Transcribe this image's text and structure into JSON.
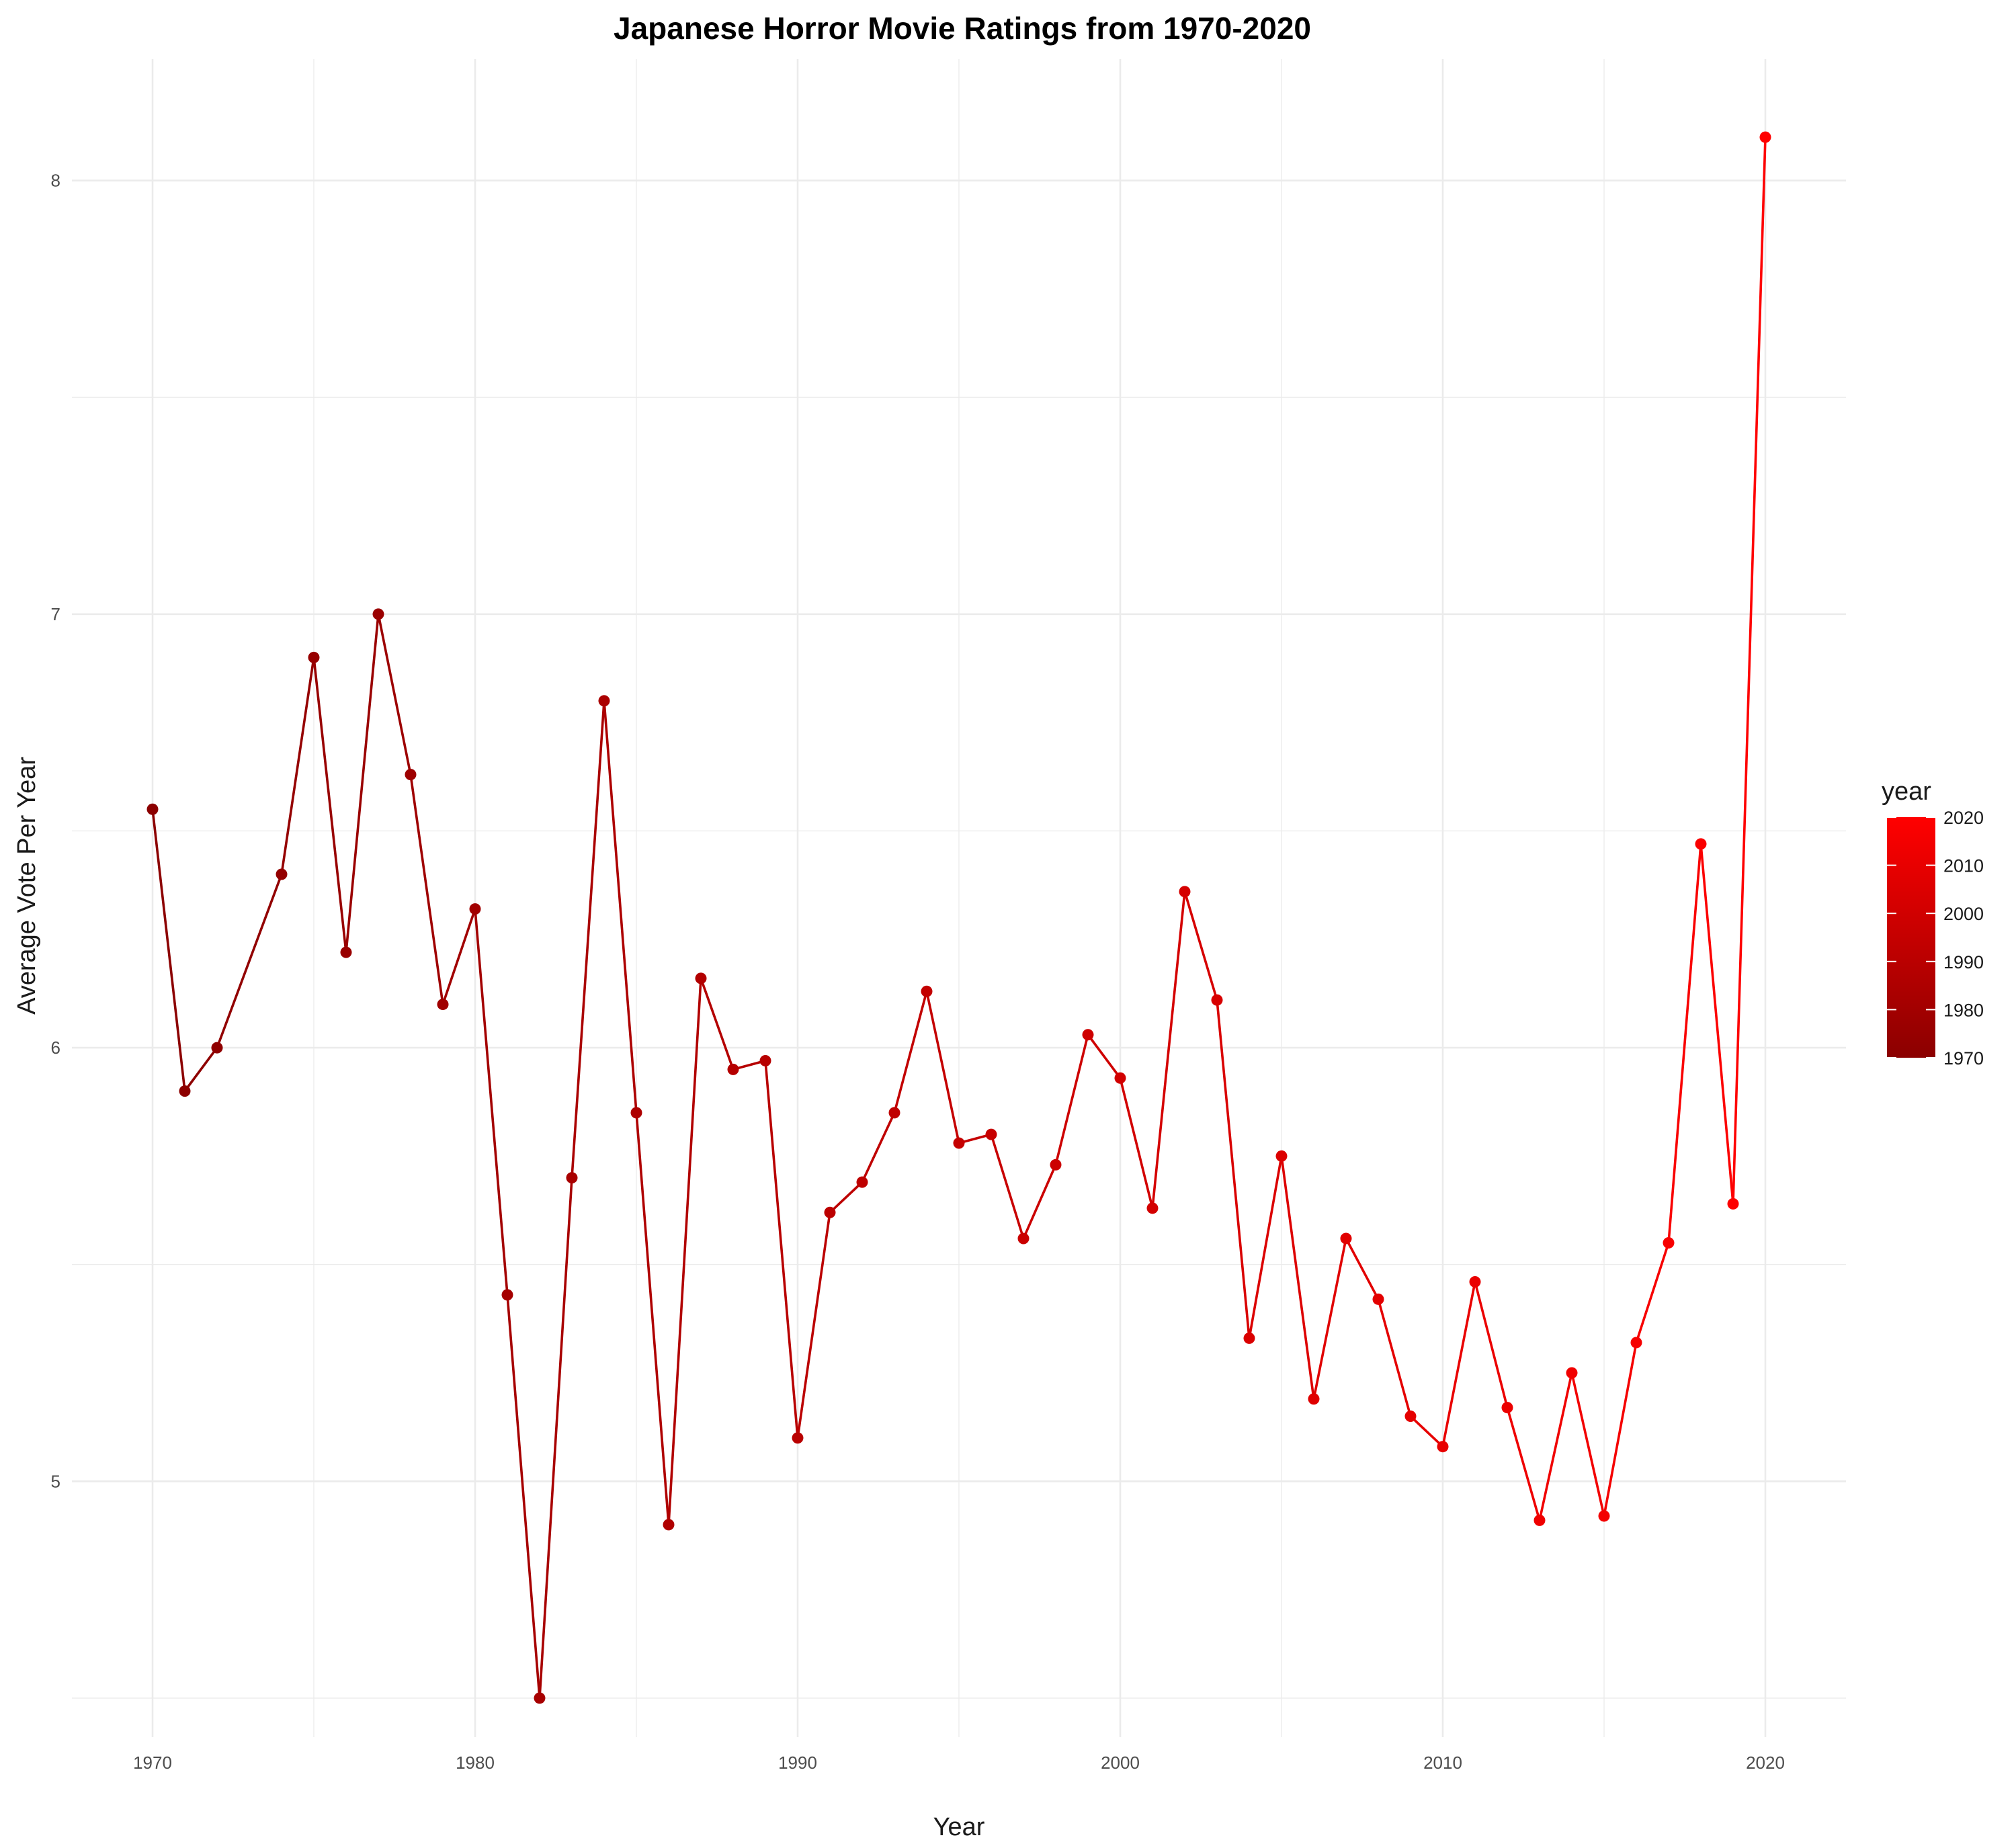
{
  "chart_data": {
    "type": "line",
    "title": "Japanese Horror Movie Ratings from 1970-2020",
    "xlabel": "Year",
    "ylabel": "Average Vote Per Year",
    "xlim": [
      1967.5,
      2022.5
    ],
    "ylim": [
      4.41,
      8.28
    ],
    "x_ticks": [
      1970,
      1980,
      1990,
      2000,
      2010,
      2020
    ],
    "y_ticks": [
      5,
      6,
      7,
      8
    ],
    "grid": true,
    "legend": {
      "title": "year",
      "type": "colorbar",
      "placement": "right",
      "range": [
        1970,
        2020
      ],
      "ticks": [
        2020,
        2010,
        2000,
        1990,
        1980,
        1970
      ],
      "low_color": "#8b0000",
      "high_color": "#ff0000"
    },
    "series": [
      {
        "x": [
          1970,
          1971,
          1972,
          1974,
          1975,
          1976,
          1977,
          1978,
          1979,
          1980,
          1981,
          1982,
          1983,
          1984,
          1985,
          1986,
          1987,
          1988,
          1989,
          1990,
          1991,
          1992,
          1993,
          1994,
          1995,
          1996,
          1997,
          1998,
          1999,
          2000,
          2001,
          2002,
          2003,
          2004,
          2005,
          2006,
          2007,
          2008,
          2009,
          2010,
          2011,
          2012,
          2013,
          2014,
          2015,
          2016,
          2017,
          2018,
          2019,
          2020
        ],
        "y": [
          6.55,
          5.9,
          6.0,
          6.4,
          6.9,
          6.22,
          7.0,
          6.63,
          6.1,
          6.32,
          5.43,
          4.5,
          5.7,
          6.8,
          5.85,
          4.9,
          6.16,
          5.95,
          5.97,
          5.1,
          5.62,
          5.69,
          5.85,
          6.13,
          5.78,
          5.8,
          5.56,
          5.73,
          6.03,
          5.93,
          5.63,
          6.36,
          6.11,
          5.33,
          5.75,
          5.19,
          5.56,
          5.42,
          5.15,
          5.08,
          5.46,
          5.17,
          4.91,
          5.25,
          4.92,
          5.32,
          5.55,
          6.47,
          5.64,
          8.1
        ]
      }
    ]
  }
}
